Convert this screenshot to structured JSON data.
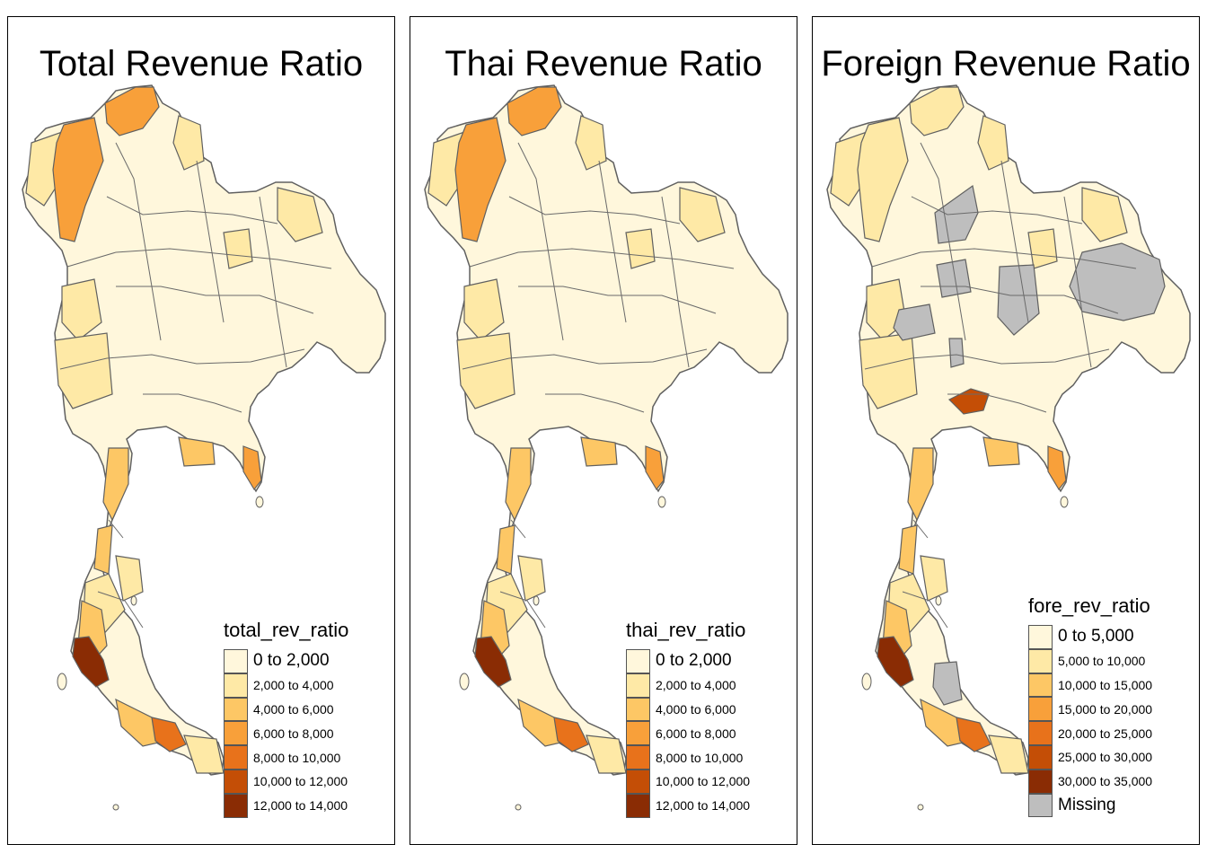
{
  "panels": [
    {
      "title": "Total Revenue Ratio",
      "legend_title": "total_rev_ratio",
      "legend": [
        {
          "label": "0 to 2,000",
          "color": "#fff7dc"
        },
        {
          "label": "2,000 to 4,000",
          "color": "#fee9a6"
        },
        {
          "label": "4,000 to 6,000",
          "color": "#fdc765"
        },
        {
          "label": "6,000 to 8,000",
          "color": "#f8a03a"
        },
        {
          "label": "8,000 to 10,000",
          "color": "#e8721b"
        },
        {
          "label": "10,000 to 12,000",
          "color": "#c44e06"
        },
        {
          "label": "12,000 to 14,000",
          "color": "#8a2c04"
        }
      ],
      "highlight_color": "#f8a03a",
      "mid_color": "#fdc765",
      "hot_color": "#8a2c04"
    },
    {
      "title": "Thai Revenue Ratio",
      "legend_title": "thai_rev_ratio",
      "legend": [
        {
          "label": "0 to 2,000",
          "color": "#fff7dc"
        },
        {
          "label": "2,000 to 4,000",
          "color": "#fee9a6"
        },
        {
          "label": "4,000 to 6,000",
          "color": "#fdc765"
        },
        {
          "label": "6,000 to 8,000",
          "color": "#f8a03a"
        },
        {
          "label": "8,000 to 10,000",
          "color": "#e8721b"
        },
        {
          "label": "10,000 to 12,000",
          "color": "#c44e06"
        },
        {
          "label": "12,000 to 14,000",
          "color": "#8a2c04"
        }
      ],
      "highlight_color": "#f8a03a",
      "mid_color": "#fdc765",
      "hot_color": "#8a2c04"
    },
    {
      "title": "Foreign Revenue Ratio",
      "legend_title": "fore_rev_ratio",
      "legend": [
        {
          "label": "0 to 5,000",
          "color": "#fff7dc"
        },
        {
          "label": "5,000 to 10,000",
          "color": "#fee9a6"
        },
        {
          "label": "10,000 to 15,000",
          "color": "#fdc765"
        },
        {
          "label": "15,000 to 20,000",
          "color": "#f8a03a"
        },
        {
          "label": "20,000 to 25,000",
          "color": "#e8721b"
        },
        {
          "label": "25,000 to 30,000",
          "color": "#c44e06"
        },
        {
          "label": "30,000 to 35,000",
          "color": "#8a2c04"
        },
        {
          "label": "Missing",
          "color": "#bebebe"
        }
      ],
      "highlight_color": "#fee9a6",
      "mid_color": "#fdc765",
      "hot_color": "#8a2c04",
      "missing_color": "#bebebe"
    }
  ]
}
